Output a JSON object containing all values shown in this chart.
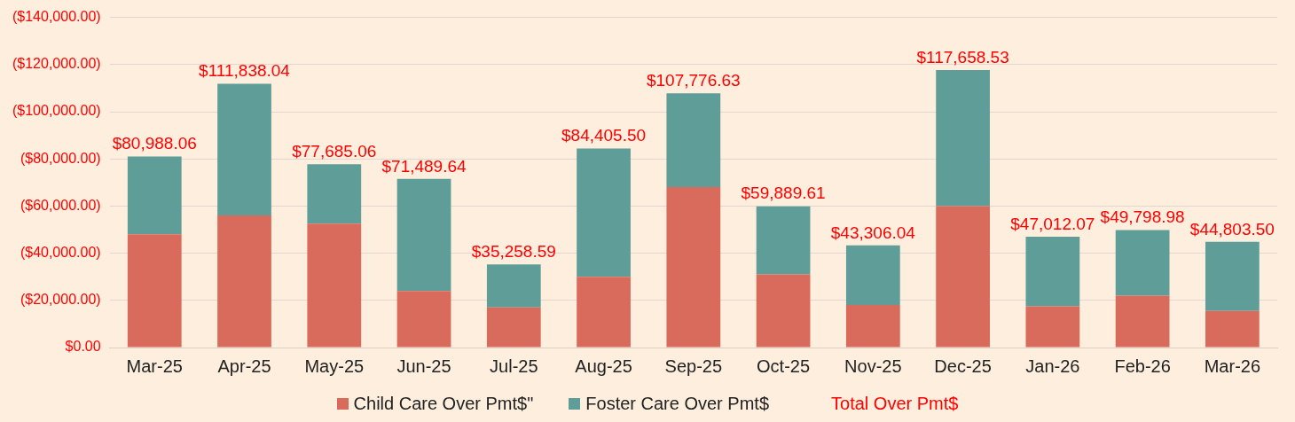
{
  "chart_data": {
    "type": "bar",
    "stacked": true,
    "categories": [
      "Mar-25",
      "Apr-25",
      "May-25",
      "Jun-25",
      "Jul-25",
      "Aug-25",
      "Sep-25",
      "Oct-25",
      "Nov-25",
      "Dec-25",
      "Jan-26",
      "Feb-26",
      "Mar-26"
    ],
    "series": [
      {
        "name": "Child Care Over Pmt$\"",
        "color": "#d96b5c",
        "values": [
          48000,
          56000,
          52500,
          24000,
          17000,
          30000,
          68000,
          31000,
          18000,
          60000,
          17500,
          22000,
          15500
        ]
      },
      {
        "name": "Foster Care Over Pmt$",
        "color": "#5f9e98",
        "values": [
          32988.06,
          55838.04,
          25185.06,
          47489.64,
          18258.59,
          54405.5,
          39776.63,
          28889.61,
          25306.04,
          57658.53,
          29512.07,
          27798.98,
          29303.5
        ]
      }
    ],
    "totals": [
      "$80,988.06",
      "$111,838.04",
      "$77,685.06",
      "$71,489.64",
      "$35,258.59",
      "$84,405.50",
      "$107,776.63",
      "$59,889.61",
      "$43,306.04",
      "$117,658.53",
      "$47,012.07",
      "$49,798.98",
      "$44,803.50"
    ],
    "annotations": [
      "Total Over Pmt$"
    ],
    "ylim": [
      0,
      140000
    ],
    "yticks": [
      {
        "value": 0,
        "label": "$0.00"
      },
      {
        "value": 20000,
        "label": "($20,000.00)"
      },
      {
        "value": 40000,
        "label": "($40,000.00)"
      },
      {
        "value": 60000,
        "label": "($60,000.00)"
      },
      {
        "value": 80000,
        "label": "($80,000.00)"
      },
      {
        "value": 100000,
        "label": "($100,000.00)"
      },
      {
        "value": 120000,
        "label": "($120,000.00)"
      },
      {
        "value": 140000,
        "label": "($140,000.00)"
      }
    ],
    "grid": "y",
    "legend": "bottom"
  }
}
